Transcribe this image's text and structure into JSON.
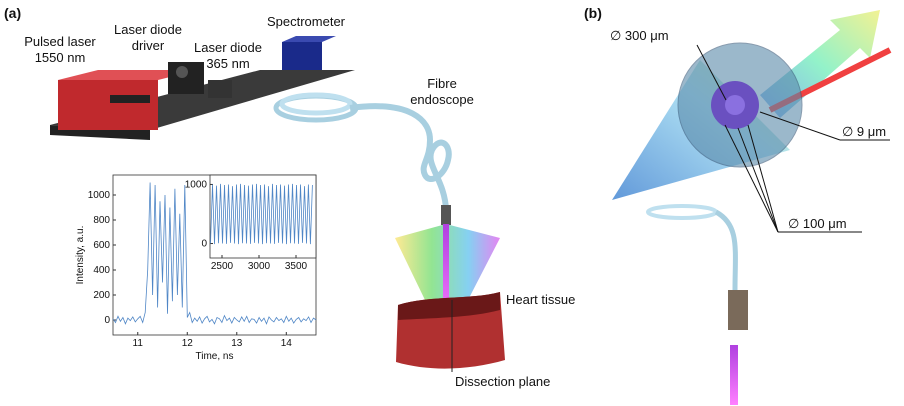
{
  "panel_a": {
    "tag": "(a)",
    "pulsed_laser": [
      "Pulsed laser",
      "1550 nm"
    ],
    "laser_diode_driver": [
      "Laser diode",
      "driver"
    ],
    "laser_diode": [
      "Laser diode",
      "365 nm"
    ],
    "spectrometer": "Spectrometer",
    "fibre_endoscope": [
      "Fibre",
      "endoscope"
    ],
    "heart_tissue": "Heart tissue",
    "dissection_plane": "Dissection plane"
  },
  "panel_b": {
    "tag": "(b)",
    "core_bundle": "∅ 300 μm",
    "fibre_core": "∅  9 μm",
    "collection_fibres": "∅ 100 μm"
  },
  "chart_data": [
    {
      "type": "line",
      "xlabel": "Time, ns",
      "ylabel": "Intensity, a.u.",
      "x": [
        10.5,
        10.55,
        10.6,
        10.65,
        10.7,
        10.75,
        10.8,
        10.85,
        10.9,
        10.95,
        11,
        11.05,
        11.1,
        11.15,
        11.2,
        11.25,
        11.3,
        11.35,
        11.4,
        11.45,
        11.5,
        11.55,
        11.6,
        11.65,
        11.7,
        11.75,
        11.8,
        11.85,
        11.9,
        11.95,
        12,
        12.05,
        12.1,
        12.15,
        12.2,
        12.25,
        12.3,
        12.35,
        12.4,
        12.45,
        12.5,
        12.55,
        12.6,
        12.65,
        12.7,
        12.75,
        12.8,
        12.85,
        12.9,
        12.95,
        13,
        13.05,
        13.1,
        13.15,
        13.2,
        13.25,
        13.3,
        13.35,
        13.4,
        13.45,
        13.5,
        13.55,
        13.6,
        13.65,
        13.7,
        13.75,
        13.8,
        13.85,
        13.9,
        13.95,
        14,
        14.05,
        14.1,
        14.15,
        14.2,
        14.25,
        14.3,
        14.35,
        14.4,
        14.45,
        14.5,
        14.55,
        14.6
      ],
      "values": [
        10,
        -20,
        30,
        -10,
        20,
        -30,
        15,
        -5,
        25,
        -15,
        10,
        30,
        -20,
        60,
        400,
        1100,
        200,
        1080,
        100,
        950,
        300,
        1000,
        50,
        900,
        150,
        1050,
        200,
        850,
        100,
        1080,
        20,
        60,
        -20,
        15,
        -10,
        25,
        -25,
        10,
        30,
        -15,
        5,
        -30,
        20,
        10,
        -20,
        35,
        -5,
        15,
        -25,
        20,
        0,
        -15,
        25,
        -10,
        30,
        -20,
        10,
        5,
        -25,
        20,
        -10,
        15,
        -30,
        25,
        0,
        -15,
        20,
        -5,
        10,
        -20,
        30,
        -10,
        15,
        -25,
        5,
        20,
        -15,
        10,
        -5,
        25,
        -20,
        15,
        0
      ],
      "color": "#4f86c6",
      "xlim": [
        10.5,
        14.6
      ],
      "ylim": [
        -120,
        1160
      ],
      "xticks": [
        11,
        12,
        13,
        14
      ],
      "yticks": [
        0,
        200,
        400,
        600,
        800,
        1000
      ]
    },
    {
      "type": "line",
      "x": [
        2345,
        2372,
        2399,
        2426,
        2453,
        2480,
        2507,
        2534,
        2561,
        2588,
        2615,
        2642,
        2669,
        2696,
        2723,
        2750,
        2777,
        2804,
        2831,
        2858,
        2885,
        2912,
        2939,
        2966,
        2993,
        3020,
        3047,
        3074,
        3101,
        3128,
        3155,
        3182,
        3209,
        3236,
        3263,
        3290,
        3317,
        3344,
        3371,
        3398,
        3425,
        3452,
        3479,
        3506,
        3533,
        3560,
        3587,
        3614,
        3641,
        3668,
        3695,
        3722
      ],
      "values": [
        0,
        1000,
        -10,
        980,
        5,
        1010,
        0,
        990,
        -5,
        1000,
        10,
        970,
        0,
        1000,
        -10,
        1010,
        5,
        990,
        0,
        980,
        -5,
        1000,
        10,
        1010,
        0,
        990,
        -10,
        1000,
        5,
        970,
        0,
        1010,
        -5,
        990,
        10,
        1000,
        0,
        980,
        -10,
        1000,
        5,
        1010,
        0,
        990,
        -5,
        1000,
        10,
        970,
        0,
        1000,
        -10,
        990
      ],
      "color": "#4f86c6",
      "xlim": [
        2338,
        3770
      ],
      "ylim": [
        -245,
        1160
      ],
      "xticks": [
        2500,
        3000,
        3500
      ],
      "yticks": [
        0,
        1000
      ]
    }
  ]
}
